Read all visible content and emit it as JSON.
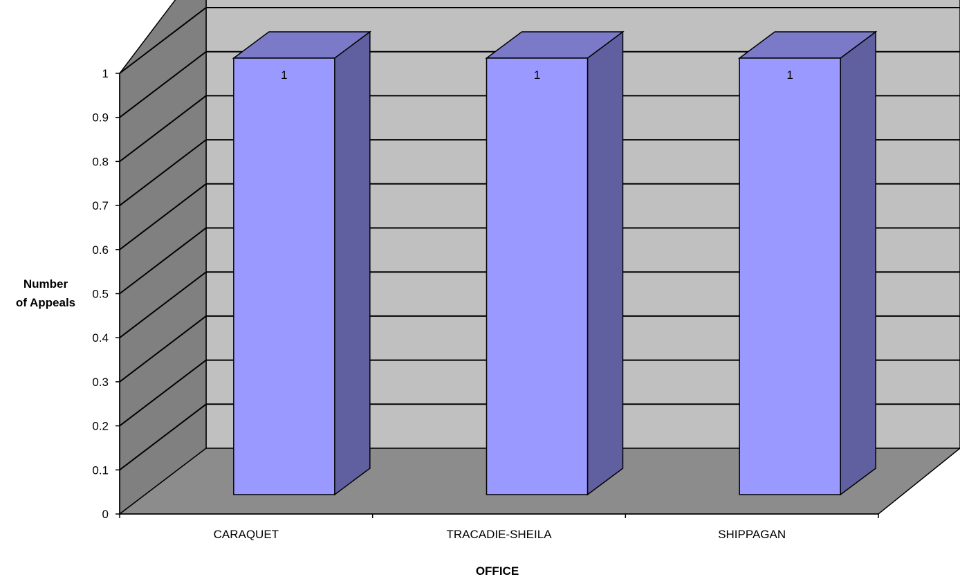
{
  "chart_data": {
    "type": "bar",
    "title": "",
    "categories": [
      "CARAQUET",
      "TRACADIE-SHEILA",
      "SHIPPAGAN"
    ],
    "series": [
      {
        "values": [
          1,
          1,
          1
        ]
      }
    ],
    "data_labels": [
      "1",
      "1",
      "1"
    ],
    "xlabel": "OFFICE",
    "ylabel_lines": [
      "Number",
      "of Appeals"
    ],
    "ylim": [
      0,
      1
    ],
    "yticks": [
      0,
      0.1,
      0.2,
      0.3,
      0.4,
      0.5,
      0.6,
      0.7,
      0.8,
      0.9,
      1
    ],
    "ytick_labels": [
      "0",
      "0.1",
      "0.2",
      "0.3",
      "0.4",
      "0.5",
      "0.6",
      "0.7",
      "0.8",
      "0.9",
      "1"
    ],
    "grid": true,
    "legend": false,
    "three_d": true,
    "colors": {
      "bar_front": "#9999ff",
      "bar_top": "#7a7ac8",
      "bar_side": "#6060a0",
      "back_wall": "#c0c0c0",
      "side_wall": "#808080",
      "floor": "#8c8c8c"
    }
  }
}
